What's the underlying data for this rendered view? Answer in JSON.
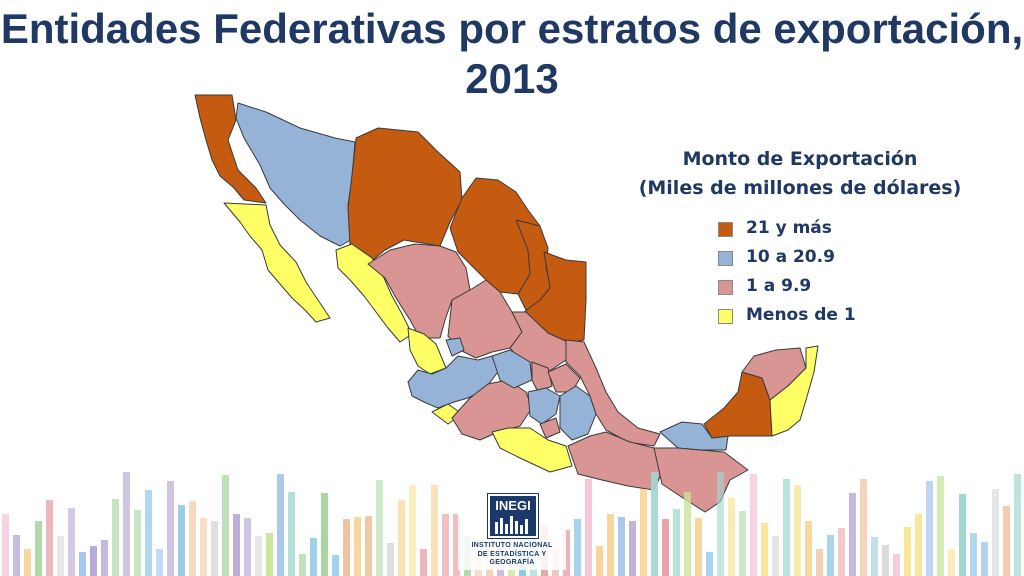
{
  "title": "Entidades Federativas por estratos de exportación, 2013",
  "legend": {
    "heading_line1": "Monto de Exportación",
    "heading_line2": "(Miles de millones de dólares)",
    "items": [
      {
        "label": "21 y más",
        "color": "#c55a11"
      },
      {
        "label": "10 a 20.9",
        "color": "#95b3d7"
      },
      {
        "label": "1 a 9.9",
        "color": "#d99594"
      },
      {
        "label": "Menos de 1",
        "color": "#ffff66"
      }
    ]
  },
  "logo": {
    "name": "INEGI",
    "line1": "INSTITUTO NACIONAL",
    "line2": "DE ESTADÍSTICA Y GEOGRAFÍA"
  }
}
